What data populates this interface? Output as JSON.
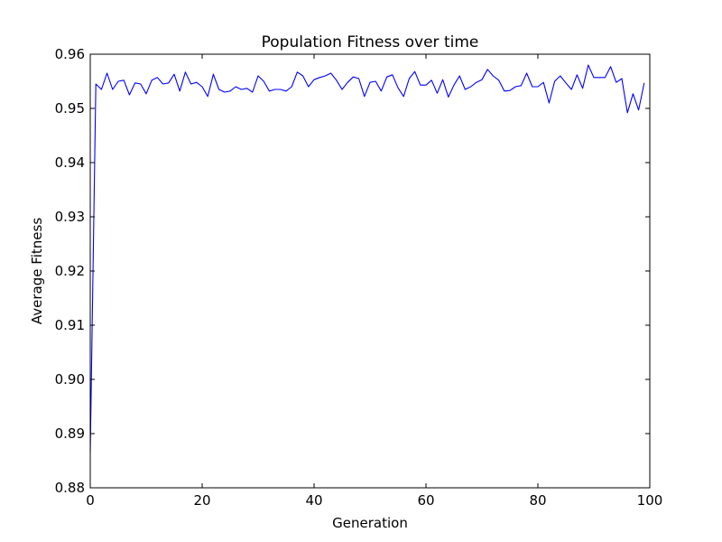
{
  "chart_data": {
    "type": "line",
    "title": "Population Fitness over time",
    "xlabel": "Generation",
    "ylabel": "Average Fitness",
    "xlim": [
      0,
      100
    ],
    "ylim": [
      0.88,
      0.96
    ],
    "xticks": [
      0,
      20,
      40,
      60,
      80,
      100
    ],
    "xtick_labels": [
      "0",
      "20",
      "40",
      "60",
      "80",
      "100"
    ],
    "yticks": [
      0.88,
      0.89,
      0.9,
      0.91,
      0.92,
      0.93,
      0.94,
      0.95,
      0.96
    ],
    "ytick_labels": [
      "0.88",
      "0.89",
      "0.90",
      "0.91",
      "0.92",
      "0.93",
      "0.94",
      "0.95",
      "0.96"
    ],
    "grid": false,
    "series": [
      {
        "name": "Average Fitness",
        "color": "#0000ff",
        "x": [
          0,
          1,
          2,
          3,
          4,
          5,
          6,
          7,
          8,
          9,
          10,
          11,
          12,
          13,
          14,
          15,
          16,
          17,
          18,
          19,
          20,
          21,
          22,
          23,
          24,
          25,
          26,
          27,
          28,
          29,
          30,
          31,
          32,
          33,
          34,
          35,
          36,
          37,
          38,
          39,
          40,
          41,
          42,
          43,
          44,
          45,
          46,
          47,
          48,
          49,
          50,
          51,
          52,
          53,
          54,
          55,
          56,
          57,
          58,
          59,
          60,
          61,
          62,
          63,
          64,
          65,
          66,
          67,
          68,
          69,
          70,
          71,
          72,
          73,
          74,
          75,
          76,
          77,
          78,
          79,
          80,
          81,
          82,
          83,
          84,
          85,
          86,
          87,
          88,
          89,
          90,
          91,
          92,
          93,
          94,
          95,
          96,
          97,
          98,
          99
        ],
        "y": [
          0.8865,
          0.9545,
          0.9535,
          0.9565,
          0.9535,
          0.955,
          0.9552,
          0.9525,
          0.9547,
          0.9545,
          0.9527,
          0.9552,
          0.9557,
          0.9545,
          0.9547,
          0.9563,
          0.9532,
          0.9567,
          0.9545,
          0.9548,
          0.954,
          0.9522,
          0.9563,
          0.9535,
          0.953,
          0.9532,
          0.954,
          0.9535,
          0.9537,
          0.953,
          0.956,
          0.955,
          0.9532,
          0.9535,
          0.9535,
          0.9532,
          0.954,
          0.9567,
          0.956,
          0.954,
          0.9553,
          0.9557,
          0.956,
          0.9565,
          0.9552,
          0.9535,
          0.9548,
          0.9558,
          0.9555,
          0.9522,
          0.9548,
          0.955,
          0.9532,
          0.9558,
          0.9562,
          0.9538,
          0.9522,
          0.9555,
          0.9568,
          0.9543,
          0.9543,
          0.9552,
          0.9528,
          0.9553,
          0.9521,
          0.9543,
          0.956,
          0.9535,
          0.954,
          0.9548,
          0.9553,
          0.9572,
          0.956,
          0.9552,
          0.9532,
          0.9533,
          0.954,
          0.9542,
          0.9565,
          0.954,
          0.954,
          0.9548,
          0.951,
          0.955,
          0.956,
          0.9547,
          0.9535,
          0.9562,
          0.9537,
          0.958,
          0.9557,
          0.9557,
          0.9557,
          0.9577,
          0.9548,
          0.9555,
          0.9492,
          0.9527,
          0.9497,
          0.9547
        ]
      }
    ]
  }
}
